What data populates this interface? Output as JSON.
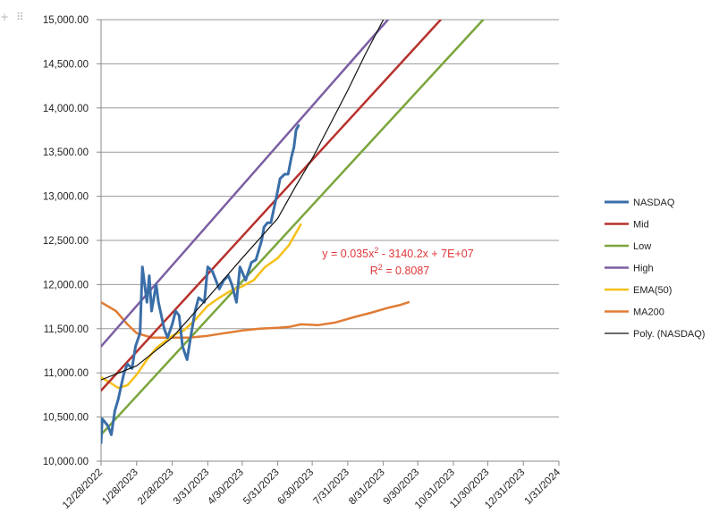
{
  "toolbar": {
    "add_icon": "+",
    "drag_icon": "⠿"
  },
  "chart_data": {
    "type": "line",
    "title": "",
    "xlabel": "",
    "ylabel": "",
    "y_ticks": [
      "10,000.00",
      "10,500.00",
      "11,000.00",
      "11,500.00",
      "12,000.00",
      "12,500.00",
      "13,000.00",
      "13,500.00",
      "14,000.00",
      "14,500.00",
      "15,000.00"
    ],
    "ylim": [
      10000,
      15000
    ],
    "x_ticks": [
      "12/28/2022",
      "1/28/2023",
      "2/28/2023",
      "3/31/2023",
      "4/30/2023",
      "5/31/2023",
      "6/30/2023",
      "7/31/2023",
      "8/31/2023",
      "9/30/2023",
      "10/31/2023",
      "11/30/2023",
      "12/31/2023",
      "1/31/2024"
    ],
    "xlim": [
      "12/28/2022",
      "1/31/2024"
    ],
    "grid": "horizontal",
    "legend_position": "right",
    "annotation": {
      "equation_prefix": "y = 0.035x",
      "equation_sup": "2",
      "equation_suffix": " - 3140.2x + 7E+07",
      "r2_prefix": "R",
      "r2_sup": "2",
      "r2_suffix": " = 0.8087",
      "color": "#e0373a"
    },
    "series": [
      {
        "name": "NASDAQ",
        "color": "#3a6ea8",
        "width": 3,
        "points": [
          [
            "12/28/2022",
            10210
          ],
          [
            "12/29/2022",
            10480
          ],
          [
            "1/3/2023",
            10400
          ],
          [
            "1/6/2023",
            10300
          ],
          [
            "1/9/2023",
            10570
          ],
          [
            "1/12/2023",
            10700
          ],
          [
            "1/17/2023",
            11000
          ],
          [
            "1/20/2023",
            11100
          ],
          [
            "1/24/2023",
            11050
          ],
          [
            "1/27/2023",
            11300
          ],
          [
            "1/31/2023",
            11450
          ],
          [
            "2/2/2023",
            12200
          ],
          [
            "2/6/2023",
            11800
          ],
          [
            "2/8/2023",
            12100
          ],
          [
            "2/10/2023",
            11700
          ],
          [
            "2/14/2023",
            12000
          ],
          [
            "2/16/2023",
            11800
          ],
          [
            "2/21/2023",
            11500
          ],
          [
            "2/24/2023",
            11400
          ],
          [
            "2/28/2023",
            11550
          ],
          [
            "3/3/2023",
            11700
          ],
          [
            "3/6/2023",
            11650
          ],
          [
            "3/9/2023",
            11300
          ],
          [
            "3/13/2023",
            11150
          ],
          [
            "3/16/2023",
            11400
          ],
          [
            "3/20/2023",
            11700
          ],
          [
            "3/23/2023",
            11850
          ],
          [
            "3/28/2023",
            11800
          ],
          [
            "3/31/2023",
            12200
          ],
          [
            "4/4/2023",
            12150
          ],
          [
            "4/10/2023",
            11950
          ],
          [
            "4/14/2023",
            12050
          ],
          [
            "4/18/2023",
            12100
          ],
          [
            "4/21/2023",
            12000
          ],
          [
            "4/25/2023",
            11800
          ],
          [
            "4/28/2023",
            12200
          ],
          [
            "5/3/2023",
            12050
          ],
          [
            "5/8/2023",
            12250
          ],
          [
            "5/12/2023",
            12280
          ],
          [
            "5/17/2023",
            12500
          ],
          [
            "5/19/2023",
            12650
          ],
          [
            "5/22/2023",
            12700
          ],
          [
            "5/25/2023",
            12700
          ],
          [
            "5/30/2023",
            13000
          ],
          [
            "6/2/2023",
            13200
          ],
          [
            "6/6/2023",
            13250
          ],
          [
            "6/9/2023",
            13250
          ],
          [
            "6/12/2023",
            13450
          ],
          [
            "6/14/2023",
            13550
          ],
          [
            "6/16/2023",
            13750
          ],
          [
            "6/18/2023",
            13800
          ]
        ]
      },
      {
        "name": "Mid",
        "color": "#b7312c",
        "width": 2.5,
        "points": [
          [
            "12/28/2022",
            10800
          ],
          [
            "10/20/2023",
            15000
          ]
        ]
      },
      {
        "name": "Low",
        "color": "#7aa53c",
        "width": 2.5,
        "points": [
          [
            "12/28/2022",
            10300
          ],
          [
            "11/26/2023",
            15000
          ]
        ]
      },
      {
        "name": "High",
        "color": "#7b5ea3",
        "width": 2.5,
        "points": [
          [
            "12/28/2022",
            11300
          ],
          [
            "9/4/2023",
            15000
          ]
        ]
      },
      {
        "name": "EMA(50)",
        "color": "#f6c018",
        "width": 2.5,
        "points": [
          [
            "12/28/2022",
            10950
          ],
          [
            "1/6/2023",
            10880
          ],
          [
            "1/12/2023",
            10830
          ],
          [
            "1/20/2023",
            10860
          ],
          [
            "1/28/2023",
            10980
          ],
          [
            "2/6/2023",
            11150
          ],
          [
            "2/14/2023",
            11280
          ],
          [
            "2/28/2023",
            11420
          ],
          [
            "3/10/2023",
            11480
          ],
          [
            "3/20/2023",
            11600
          ],
          [
            "3/31/2023",
            11760
          ],
          [
            "4/10/2023",
            11850
          ],
          [
            "4/20/2023",
            11930
          ],
          [
            "4/30/2023",
            11980
          ],
          [
            "5/10/2023",
            12050
          ],
          [
            "5/20/2023",
            12200
          ],
          [
            "5/31/2023",
            12300
          ],
          [
            "6/10/2023",
            12450
          ],
          [
            "6/20/2023",
            12680
          ]
        ]
      },
      {
        "name": "MA200",
        "color": "#e07c34",
        "width": 2.5,
        "points": [
          [
            "12/28/2022",
            11800
          ],
          [
            "1/10/2023",
            11700
          ],
          [
            "1/20/2023",
            11550
          ],
          [
            "1/28/2023",
            11450
          ],
          [
            "2/10/2023",
            11400
          ],
          [
            "2/28/2023",
            11400
          ],
          [
            "3/15/2023",
            11400
          ],
          [
            "3/31/2023",
            11420
          ],
          [
            "4/15/2023",
            11450
          ],
          [
            "4/30/2023",
            11480
          ],
          [
            "5/15/2023",
            11500
          ],
          [
            "5/31/2023",
            11510
          ],
          [
            "6/10/2023",
            11520
          ],
          [
            "6/20/2023",
            11550
          ],
          [
            "7/5/2023",
            11540
          ],
          [
            "7/20/2023",
            11570
          ],
          [
            "8/5/2023",
            11630
          ],
          [
            "8/20/2023",
            11680
          ],
          [
            "9/5/2023",
            11740
          ],
          [
            "9/15/2023",
            11770
          ],
          [
            "9/22/2023",
            11800
          ]
        ]
      },
      {
        "name": "Poly. (NASDAQ)",
        "color": "#111111",
        "width": 1.2,
        "points": [
          [
            "12/28/2022",
            10920
          ],
          [
            "1/28/2023",
            11080
          ],
          [
            "2/28/2023",
            11400
          ],
          [
            "3/31/2023",
            11850
          ],
          [
            "4/30/2023",
            12300
          ],
          [
            "5/31/2023",
            12750
          ],
          [
            "6/15/2023",
            13100
          ],
          [
            "7/1/2023",
            13450
          ],
          [
            "7/15/2023",
            13800
          ],
          [
            "7/31/2023",
            14200
          ],
          [
            "8/15/2023",
            14600
          ],
          [
            "8/31/2023",
            15000
          ]
        ]
      }
    ]
  }
}
